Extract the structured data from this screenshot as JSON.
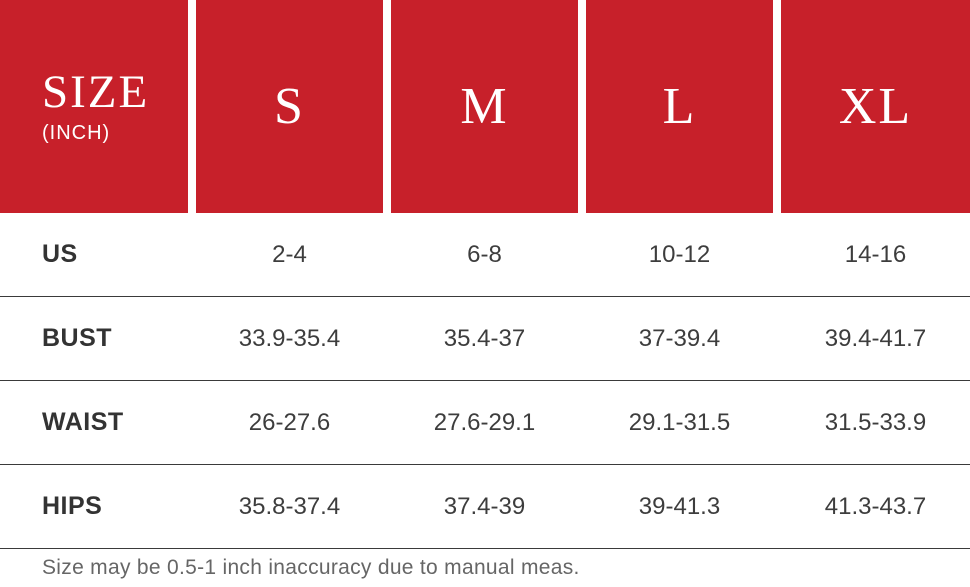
{
  "chart_data": {
    "type": "table",
    "title": "SIZE (INCH)",
    "columns": [
      "SIZE (INCH)",
      "S",
      "M",
      "L",
      "XL"
    ],
    "rows": [
      [
        "US",
        "2-4",
        "6-8",
        "10-12",
        "14-16"
      ],
      [
        "BUST",
        "33.9-35.4",
        "35.4-37",
        "37-39.4",
        "39.4-41.7"
      ],
      [
        "WAIST",
        "26-27.6",
        "27.6-29.1",
        "29.1-31.5",
        "31.5-33.9"
      ],
      [
        "HIPS",
        "35.8-37.4",
        "37.4-39",
        "39-41.3",
        "41.3-43.7"
      ]
    ],
    "note": "Size may be 0.5-1 inch inaccuracy due to manual meas."
  },
  "header": {
    "size_label": "SIZE",
    "unit_label": "(INCH)",
    "columns": [
      "S",
      "M",
      "L",
      "XL"
    ]
  },
  "rows": [
    {
      "label": "US",
      "values": [
        "2-4",
        "6-8",
        "10-12",
        "14-16"
      ]
    },
    {
      "label": "BUST",
      "values": [
        "33.9-35.4",
        "35.4-37",
        "37-39.4",
        "39.4-41.7"
      ]
    },
    {
      "label": "WAIST",
      "values": [
        "26-27.6",
        "27.6-29.1",
        "29.1-31.5",
        "31.5-33.9"
      ]
    },
    {
      "label": "HIPS",
      "values": [
        "35.8-37.4",
        "37.4-39",
        "39-41.3",
        "41.3-43.7"
      ]
    }
  ],
  "footer": {
    "note": "Size may be 0.5-1 inch inaccuracy due to manual meas."
  },
  "colors": {
    "header_red": "#C7202A",
    "header_text": "#FFFFFF",
    "label_text": "#333333",
    "value_text": "#3D3D3D",
    "divider": "#3A3A3A",
    "note_text": "#666666",
    "background": "#FFFFFF"
  }
}
